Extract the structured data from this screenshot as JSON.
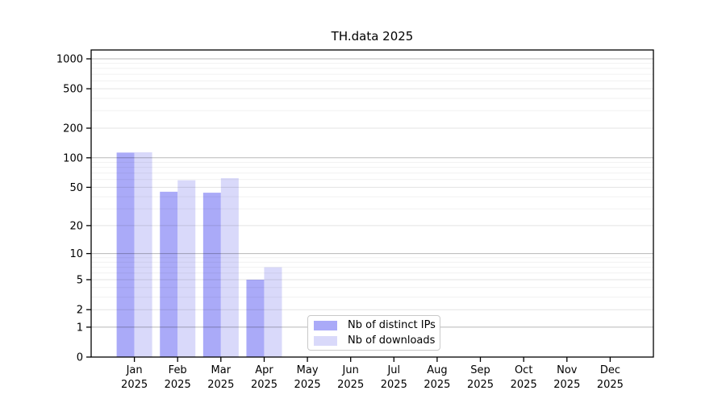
{
  "window": {
    "background": "#ffffff"
  },
  "chart_data": {
    "type": "bar",
    "title": "TH.data 2025",
    "categories": [
      "Jan",
      "Feb",
      "Mar",
      "Apr",
      "May",
      "Jun",
      "Jul",
      "Aug",
      "Sep",
      "Oct",
      "Nov",
      "Dec"
    ],
    "x_tick_second_line": "2025",
    "series": [
      {
        "name": "Nb of distinct IPs",
        "color": "#aaaaf8",
        "values": [
          113,
          45,
          44,
          5,
          0,
          0,
          0,
          0,
          0,
          0,
          0,
          0
        ]
      },
      {
        "name": "Nb of downloads",
        "color": "#d9d9fa",
        "values": [
          114,
          59,
          62,
          7,
          0,
          0,
          0,
          0,
          0,
          0,
          0,
          0
        ]
      }
    ],
    "y_ticks": [
      0,
      1,
      2,
      5,
      10,
      20,
      50,
      100,
      200,
      500,
      1000
    ],
    "y_scale": "log10(1+x)",
    "ylim": [
      0,
      1230
    ],
    "grid": true,
    "legend_position": "inside-bottom-center",
    "colors": {
      "gridline_power10": "rgba(0,0,0,0.28)",
      "gridline_major": "rgba(0,0,0,0.11)",
      "gridline_minor": "rgba(0,0,0,0.055)",
      "axis": "#000000"
    }
  }
}
